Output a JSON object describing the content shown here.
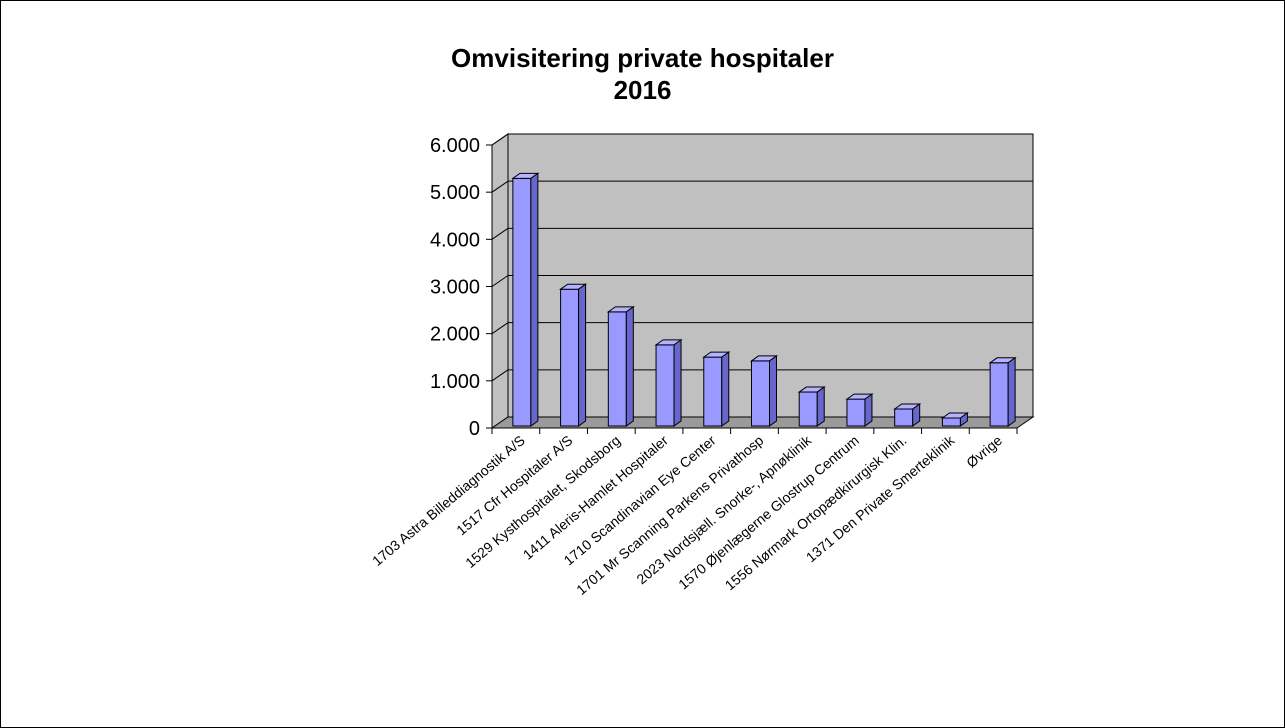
{
  "chart_data": {
    "type": "bar",
    "title": [
      "Omvisitering private hospitaler",
      "2016"
    ],
    "categories": [
      "1703 Astra Billeddiagnostik A/S",
      "1517 Cfr Hospitaler A/S",
      "1529 Kysthospitalet, Skodsborg",
      "1411 Aleris-Hamlet Hospitaler",
      "1710 Scandinavian Eye Center",
      "1701 Mr Scanning Parkens Privathosp",
      "2023 Nordsjæll. Snorke-, Apnøklinik",
      "1570 Øjenlægerne Glostrup Centrum",
      "1556 Nørmark Ortopædkirurgisk Klin.",
      "1371 Den Private Smerteklinik",
      "Øvrige"
    ],
    "values": [
      5250,
      2900,
      2420,
      1720,
      1460,
      1380,
      720,
      570,
      360,
      170,
      1340
    ],
    "yticks": [
      "0",
      "1.000",
      "2.000",
      "3.000",
      "4.000",
      "5.000",
      "6.000"
    ],
    "ylim": [
      0,
      6000
    ],
    "grid": true,
    "legend": "none",
    "style": "3d",
    "colors": {
      "bar_front": "#9999ff",
      "bar_top": "#b3b3ff",
      "bar_side": "#6666cc",
      "back_wall": "#c0c0c0",
      "floor": "#9a9a9a"
    }
  }
}
